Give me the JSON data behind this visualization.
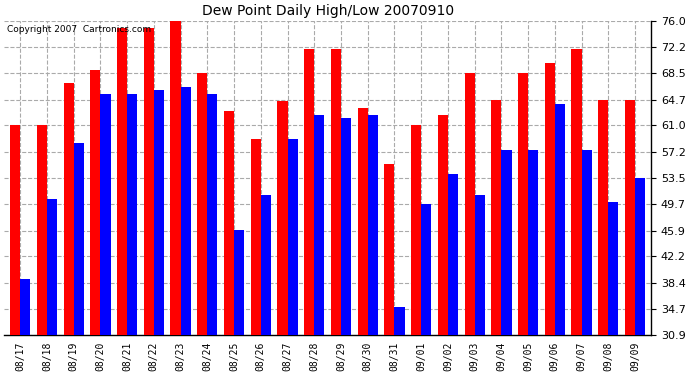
{
  "title": "Dew Point Daily High/Low 20070910",
  "copyright": "Copyright 2007  Cartronics.com",
  "background_color": "#ffffff",
  "plot_bg_color": "#ffffff",
  "grid_color": "#aaaaaa",
  "bar_width": 0.38,
  "yticks": [
    30.9,
    34.7,
    38.4,
    42.2,
    45.9,
    49.7,
    53.5,
    57.2,
    61.0,
    64.7,
    68.5,
    72.2,
    76.0
  ],
  "ylim": [
    30.9,
    76.0
  ],
  "dates": [
    "08/17",
    "08/18",
    "08/19",
    "08/20",
    "08/21",
    "08/22",
    "08/23",
    "08/24",
    "08/25",
    "08/26",
    "08/27",
    "08/28",
    "08/29",
    "08/30",
    "08/31",
    "09/01",
    "09/02",
    "09/03",
    "09/04",
    "09/05",
    "09/06",
    "09/07",
    "09/08",
    "09/09"
  ],
  "high_values": [
    61.0,
    61.0,
    67.0,
    69.0,
    75.0,
    75.0,
    76.0,
    68.5,
    63.0,
    59.0,
    64.5,
    72.0,
    72.0,
    63.5,
    55.5,
    61.0,
    62.5,
    68.5,
    64.7,
    68.5,
    70.0,
    72.0,
    64.7,
    64.7
  ],
  "low_values": [
    39.0,
    50.5,
    58.5,
    65.5,
    65.5,
    66.0,
    66.5,
    65.5,
    46.0,
    51.0,
    59.0,
    62.5,
    62.0,
    62.5,
    35.0,
    49.7,
    54.0,
    51.0,
    57.5,
    57.5,
    64.0,
    57.5,
    50.0,
    53.5
  ],
  "high_color": "#ff0000",
  "low_color": "#0000ff"
}
